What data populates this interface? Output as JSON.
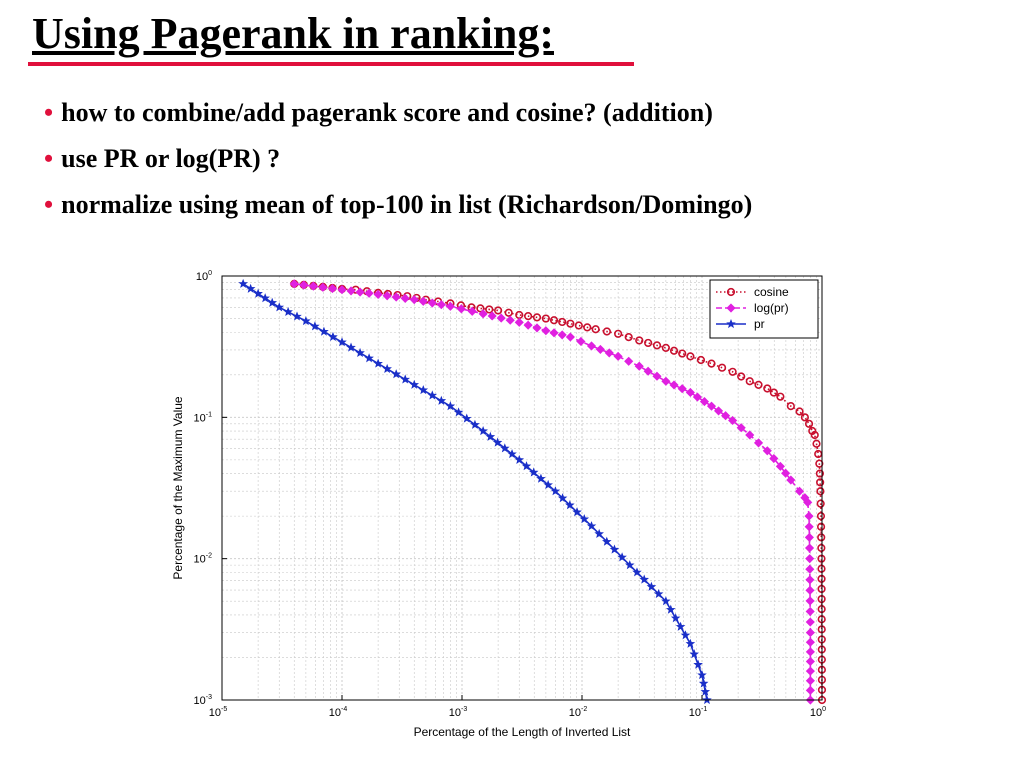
{
  "slide": {
    "title": "Using Pagerank in ranking:",
    "bullets": [
      "how to combine/add pagerank score and cosine? (addition)",
      "use PR or log(PR) ?",
      "normalize using mean of top-100 in list  (Richardson/Domingo)"
    ]
  },
  "colors": {
    "title_underline": "#e0103c",
    "bullet": "#e0103c",
    "cosine": "#c8102e",
    "log_pr": "#e020e0",
    "pr": "#1a2fc8",
    "grid": "#c8c8c8"
  },
  "chart_data": {
    "type": "line",
    "x_scale": "log",
    "y_scale": "log",
    "xlim": [
      1e-05,
      1
    ],
    "ylim": [
      0.001,
      1
    ],
    "grid": true,
    "legend_position": "top-right",
    "xlabel": "Percentage of the Length of Inverted List",
    "ylabel": "Percentage of the Maximum Value",
    "x_ticks": [
      {
        "base": "10",
        "exp": "-5"
      },
      {
        "base": "10",
        "exp": "-4"
      },
      {
        "base": "10",
        "exp": "-3"
      },
      {
        "base": "10",
        "exp": "-2"
      },
      {
        "base": "10",
        "exp": "-1"
      },
      {
        "base": "10",
        "exp": "0"
      }
    ],
    "y_ticks": [
      {
        "base": "10",
        "exp": "0"
      },
      {
        "base": "10",
        "exp": "-1"
      },
      {
        "base": "10",
        "exp": "-2"
      },
      {
        "base": "10",
        "exp": "-3"
      }
    ],
    "series": [
      {
        "name": "cosine",
        "color": "#c8102e",
        "marker": "circle",
        "line_style": "dotted",
        "x": [
          4e-05,
          0.0001,
          0.00013,
          0.0002,
          0.00035,
          0.0005,
          0.0008,
          0.0012,
          0.002,
          0.003,
          0.005,
          0.008,
          0.013,
          0.02,
          0.03,
          0.05,
          0.08,
          0.12,
          0.18,
          0.25,
          0.35,
          0.45,
          0.55,
          0.65,
          0.72,
          0.78,
          0.83,
          0.87,
          0.9,
          0.93,
          0.95,
          0.96,
          0.97,
          0.98,
          0.99,
          1.0
        ],
        "y": [
          0.88,
          0.81,
          0.8,
          0.76,
          0.72,
          0.68,
          0.64,
          0.6,
          0.57,
          0.53,
          0.5,
          0.46,
          0.42,
          0.39,
          0.35,
          0.31,
          0.27,
          0.24,
          0.21,
          0.18,
          0.16,
          0.14,
          0.12,
          0.11,
          0.1,
          0.09,
          0.08,
          0.075,
          0.065,
          0.055,
          0.047,
          0.04,
          0.03,
          0.02,
          0.01,
          0.001
        ]
      },
      {
        "name": "log(pr)",
        "color": "#e020e0",
        "marker": "diamond",
        "line_style": "dashed",
        "x": [
          4e-05,
          0.0001,
          0.0002,
          0.0004,
          0.0008,
          0.0015,
          0.003,
          0.005,
          0.008,
          0.012,
          0.02,
          0.03,
          0.05,
          0.08,
          0.12,
          0.18,
          0.25,
          0.35,
          0.45,
          0.55,
          0.65,
          0.72,
          0.76,
          0.78,
          0.79,
          0.8,
          0.8
        ],
        "y": [
          0.88,
          0.8,
          0.74,
          0.68,
          0.61,
          0.54,
          0.47,
          0.41,
          0.37,
          0.32,
          0.27,
          0.23,
          0.18,
          0.15,
          0.12,
          0.095,
          0.075,
          0.058,
          0.045,
          0.036,
          0.03,
          0.027,
          0.025,
          0.02,
          0.01,
          0.003,
          0.001
        ]
      },
      {
        "name": "pr",
        "color": "#1a2fc8",
        "marker": "star",
        "line_style": "solid",
        "x": [
          1.5e-05,
          2e-05,
          3e-05,
          5e-05,
          0.0001,
          0.0002,
          0.0004,
          0.0008,
          0.0015,
          0.003,
          0.006,
          0.012,
          0.025,
          0.05,
          0.08,
          0.1,
          0.11
        ],
        "y": [
          0.88,
          0.75,
          0.6,
          0.48,
          0.34,
          0.24,
          0.17,
          0.12,
          0.08,
          0.05,
          0.03,
          0.017,
          0.009,
          0.005,
          0.0025,
          0.0015,
          0.001
        ]
      }
    ]
  }
}
